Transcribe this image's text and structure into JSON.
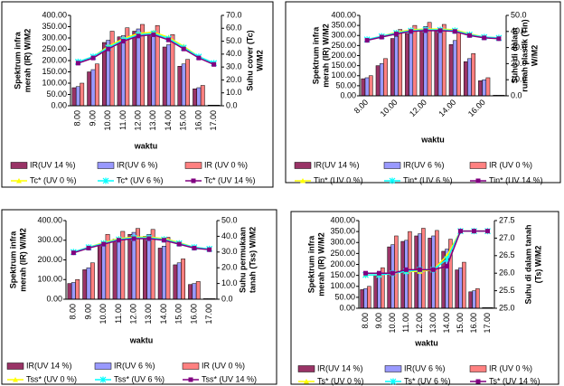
{
  "chart_data": [
    {
      "type": "bar",
      "categories": [
        "8.00",
        "9.00",
        "10.00",
        "11.00",
        "12.00",
        "13.00",
        "14.00",
        "15.00",
        "16.00",
        "17.00"
      ],
      "xlabel": "waktu",
      "ylabel": [
        "Spektrum infra",
        "merah (IR) W/M2"
      ],
      "y2label": [
        "Suhu cover (Tc)",
        "W/M2"
      ],
      "ylim": [
        0,
        400
      ],
      "yticks": [
        {
          "value": 0,
          "label": "0.00"
        },
        {
          "value": 50,
          "label": "50.00"
        },
        {
          "value": 100,
          "label": "100.00"
        },
        {
          "value": 150,
          "label": "150.00"
        },
        {
          "value": 200,
          "label": "200.00"
        },
        {
          "value": 250,
          "label": "250.00"
        },
        {
          "value": 300,
          "label": "300.00"
        },
        {
          "value": 350,
          "label": "350.00"
        },
        {
          "value": 400,
          "label": "400.00"
        }
      ],
      "y2lim": [
        0,
        70
      ],
      "y2ticks": [
        {
          "value": 0,
          "label": "0.0"
        },
        {
          "value": 10,
          "label": "10.0"
        },
        {
          "value": 20,
          "label": "20.0"
        },
        {
          "value": 30,
          "label": "30.0"
        },
        {
          "value": 40,
          "label": "40.0"
        },
        {
          "value": 50,
          "label": "50.0"
        },
        {
          "value": 60,
          "label": "60.0"
        },
        {
          "value": 70,
          "label": "70.0"
        }
      ],
      "series": [
        {
          "name": "IR(UV 14 %)",
          "color": "#993366",
          "values": [
            80,
            150,
            280,
            305,
            330,
            320,
            260,
            175,
            75,
            3
          ]
        },
        {
          "name": "IR(UV 6 %)",
          "color": "#9999ff",
          "values": [
            85,
            160,
            290,
            310,
            340,
            330,
            270,
            185,
            80,
            3
          ]
        },
        {
          "name": "IR (UV 0 %)",
          "color": "#ff8080",
          "values": [
            100,
            185,
            330,
            345,
            360,
            355,
            315,
            205,
            90,
            3
          ]
        },
        {
          "name": "Tc* (UV 0 %)",
          "color": "#ffff00",
          "type": "line",
          "axis": "y2",
          "marker": "triangle",
          "values": [
            34,
            38,
            46,
            52,
            56,
            57,
            53,
            46,
            38,
            33
          ]
        },
        {
          "name": "Tc* (UV 6 %)",
          "color": "#00ffff",
          "type": "line",
          "axis": "y2",
          "marker": "star",
          "values": [
            34,
            38,
            45,
            51,
            55,
            56,
            52,
            45,
            38,
            33
          ]
        },
        {
          "name": "Tc* (UV 14 %)",
          "color": "#800080",
          "type": "line",
          "axis": "y2",
          "marker": "square",
          "values": [
            33,
            37,
            44,
            50,
            54,
            55,
            51,
            44,
            37,
            32
          ]
        }
      ]
    },
    {
      "type": "bar",
      "categories": [
        "8.00",
        null,
        "10.00",
        null,
        "12.00",
        null,
        "14.00",
        null,
        "16.00",
        null
      ],
      "xlabel": "waktu",
      "ylabel": [
        "Spektrum infra",
        "merah (IR) W/M2"
      ],
      "y2label": [
        "Suhu di dalam",
        "rumah plastik (Tin)",
        "W/M2"
      ],
      "ylim": [
        0,
        400
      ],
      "yticks": [
        {
          "value": 0,
          "label": "0.00"
        },
        {
          "value": 50,
          "label": "50.00"
        },
        {
          "value": 100,
          "label": "100.00"
        },
        {
          "value": 150,
          "label": "150.00"
        },
        {
          "value": 200,
          "label": "200.00"
        },
        {
          "value": 250,
          "label": "250.00"
        },
        {
          "value": 300,
          "label": "300.00"
        },
        {
          "value": 350,
          "label": "350.00"
        },
        {
          "value": 400,
          "label": "400.00"
        }
      ],
      "y2lim": [
        0,
        50
      ],
      "y2ticks": [
        {
          "value": 0,
          "label": "0.0"
        },
        {
          "value": 10,
          "label": "10.0"
        },
        {
          "value": 20,
          "label": "20.0"
        },
        {
          "value": 30,
          "label": "30.0"
        },
        {
          "value": 40,
          "label": "40.0"
        },
        {
          "value": 50,
          "label": "50.0"
        }
      ],
      "series": [
        {
          "name": "IR(UV 14 %)",
          "color": "#993366",
          "values": [
            85,
            150,
            285,
            310,
            325,
            325,
            255,
            170,
            75,
            3
          ]
        },
        {
          "name": "IR(UV 6 %)",
          "color": "#9999ff",
          "values": [
            90,
            160,
            295,
            315,
            345,
            330,
            275,
            185,
            80,
            3
          ]
        },
        {
          "name": "IR (UV 0 %)",
          "color": "#ff8080",
          "values": [
            100,
            185,
            330,
            350,
            365,
            355,
            315,
            210,
            90,
            3
          ]
        },
        {
          "name": "Tin* (UV 0 %)",
          "color": "#ffff00",
          "type": "line",
          "axis": "y2",
          "marker": "triangle",
          "values": [
            35,
            37,
            39.5,
            41,
            41.5,
            41.5,
            41,
            38.5,
            36.5,
            36
          ]
        },
        {
          "name": "Tin* (UV 6 %)",
          "color": "#00ffff",
          "type": "line",
          "axis": "y2",
          "marker": "star",
          "values": [
            35,
            37,
            39,
            40.5,
            41,
            41,
            40.5,
            38,
            36.5,
            36
          ]
        },
        {
          "name": "Tin* (UV 14 %)",
          "color": "#800080",
          "type": "line",
          "axis": "y2",
          "marker": "square",
          "values": [
            34.5,
            36.5,
            38.5,
            40,
            40.5,
            40.5,
            40,
            37.5,
            36,
            35.5
          ]
        }
      ]
    },
    {
      "type": "bar",
      "categories": [
        "8.00",
        "9.00",
        "10.00",
        "11.00",
        "12.00",
        "13.00",
        "14.00",
        "15.00",
        "16.00",
        "17.00"
      ],
      "xlabel": "waktu",
      "ylabel": [
        "Spektrum infra",
        "merah (IR) W/M2"
      ],
      "y2label": [
        "Suhu permukaan",
        "tanah (Tss) W/M2"
      ],
      "ylim": [
        0,
        400
      ],
      "yticks": [
        {
          "value": 0,
          "label": "0.00"
        },
        {
          "value": 100,
          "label": "100.00"
        },
        {
          "value": 200,
          "label": "200.00"
        },
        {
          "value": 300,
          "label": "300.00"
        },
        {
          "value": 400,
          "label": "400.00"
        }
      ],
      "y2lim": [
        0,
        50
      ],
      "y2ticks": [
        {
          "value": 0,
          "label": "0.0"
        },
        {
          "value": 10,
          "label": "10.0"
        },
        {
          "value": 20,
          "label": "20.0"
        },
        {
          "value": 30,
          "label": "30.0"
        },
        {
          "value": 40,
          "label": "40.0"
        },
        {
          "value": 50,
          "label": "50.0"
        }
      ],
      "series": [
        {
          "name": "IR(UV 14 %)",
          "color": "#993366",
          "values": [
            80,
            150,
            280,
            305,
            330,
            320,
            260,
            175,
            75,
            3
          ]
        },
        {
          "name": "IR(UV 6 %)",
          "color": "#9999ff",
          "values": [
            85,
            160,
            290,
            310,
            340,
            330,
            270,
            185,
            80,
            3
          ]
        },
        {
          "name": "IR (UV 0 %)",
          "color": "#ff8080",
          "values": [
            100,
            185,
            330,
            345,
            360,
            355,
            315,
            205,
            90,
            3
          ]
        },
        {
          "name": "Tss* (UV 0 %)",
          "color": "#ffff00",
          "type": "line",
          "axis": "y2",
          "marker": "triangle",
          "values": [
            30,
            33,
            36,
            38.5,
            39.5,
            39.5,
            38.5,
            36,
            33,
            32
          ]
        },
        {
          "name": "Tss* (UV 6 %)",
          "color": "#00ffff",
          "type": "line",
          "axis": "y2",
          "marker": "star",
          "values": [
            30,
            33,
            35.5,
            38,
            39,
            39,
            38,
            35.5,
            33,
            32
          ]
        },
        {
          "name": "Tss* (UV 14 %)",
          "color": "#800080",
          "type": "line",
          "axis": "y2",
          "marker": "square",
          "values": [
            29.5,
            32.5,
            35,
            37.5,
            38.5,
            38.5,
            37.5,
            35,
            32.5,
            31.5
          ]
        }
      ]
    },
    {
      "type": "bar",
      "categories": [
        "8.00",
        "9.00",
        "10.00",
        "11.00",
        "12.00",
        "13.00",
        "14.00",
        "15.00",
        "16.00",
        "17.00"
      ],
      "xlabel": "waktu",
      "ylabel": [
        "Spektrum infra",
        "merah (IR) W/M2"
      ],
      "y2label": [
        "Suhu di dalam tanah",
        "(Ts) W/M2"
      ],
      "ylim": [
        0,
        400
      ],
      "yticks": [
        {
          "value": 0,
          "label": "0.00"
        },
        {
          "value": 50,
          "label": "50.00"
        },
        {
          "value": 100,
          "label": "100.00"
        },
        {
          "value": 150,
          "label": "150.00"
        },
        {
          "value": 200,
          "label": "200.00"
        },
        {
          "value": 250,
          "label": "250.00"
        },
        {
          "value": 300,
          "label": "300.00"
        },
        {
          "value": 350,
          "label": "350.00"
        },
        {
          "value": 400,
          "label": "400.00"
        }
      ],
      "y2lim": [
        25,
        27.5
      ],
      "y2ticks": [
        {
          "value": 25,
          "label": "25.0"
        },
        25.5,
        {
          "value": 26,
          "label": "26.0"
        },
        26.5,
        {
          "value": 27,
          "label": "27.0"
        },
        27.5
      ],
      "series": [
        {
          "name": "IR(UV 14 %)",
          "color": "#993366",
          "values": [
            85,
            150,
            280,
            305,
            330,
            320,
            260,
            175,
            75,
            3
          ]
        },
        {
          "name": "IR(UV 6 %)",
          "color": "#9999ff",
          "values": [
            90,
            160,
            290,
            310,
            340,
            330,
            270,
            185,
            80,
            3
          ]
        },
        {
          "name": "IR (UV 0 %)",
          "color": "#ff8080",
          "values": [
            100,
            185,
            330,
            350,
            365,
            355,
            315,
            210,
            90,
            3
          ]
        },
        {
          "name": "Ts* (UV 0 %)",
          "color": "#ffff00",
          "type": "line",
          "axis": "y2",
          "marker": "triangle",
          "values": [
            25.95,
            25.95,
            26,
            26.05,
            26.05,
            26.1,
            26.5,
            27.2,
            27.2,
            27.2
          ]
        },
        {
          "name": "Ts* (UV 6 %)",
          "color": "#00ffff",
          "type": "line",
          "axis": "y2",
          "marker": "star",
          "values": [
            25.95,
            25.95,
            26,
            26.05,
            26.1,
            26.1,
            26.4,
            27.2,
            27.2,
            27.2
          ]
        },
        {
          "name": "Ts* (UV 14 %)",
          "color": "#800080",
          "type": "line",
          "axis": "y2",
          "marker": "square",
          "values": [
            26,
            26,
            26,
            26.1,
            26.1,
            26.1,
            26.2,
            27.2,
            27.2,
            27.2
          ]
        }
      ]
    }
  ]
}
